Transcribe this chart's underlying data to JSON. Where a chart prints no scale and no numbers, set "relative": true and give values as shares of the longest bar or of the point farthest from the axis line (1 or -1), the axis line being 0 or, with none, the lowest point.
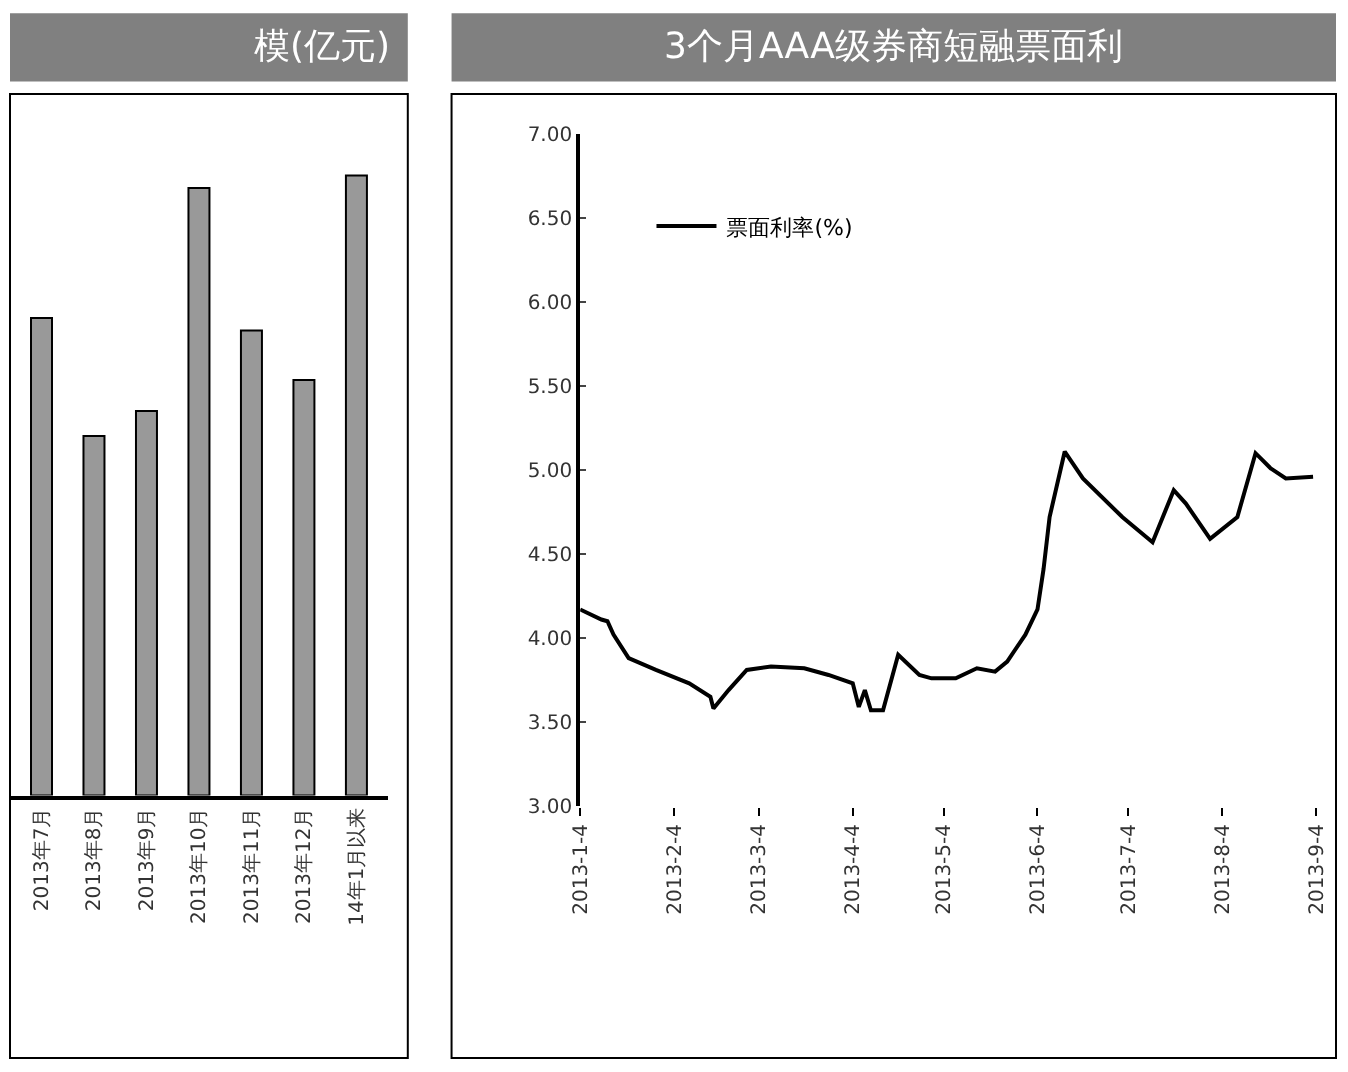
{
  "chart_data": [
    {
      "type": "bar",
      "title": "模(亿元)",
      "relative": true,
      "color": "#999999",
      "categories": [
        "2013年7月",
        "2013年8月",
        "2013年9月",
        "2013年10月",
        "2013年11月",
        "2013年12月",
        "14年1月以来"
      ],
      "values": [
        0.77,
        0.58,
        0.62,
        0.98,
        0.75,
        0.67,
        1.0
      ]
    },
    {
      "type": "line",
      "title": "3个月AAA级券商短融票面利",
      "legend": "top left",
      "marker": "none",
      "line_style": "solid",
      "x": [
        "2013-01-04",
        "2013-01-11",
        "2013-01-13",
        "2013-01-15",
        "2013-01-20",
        "2013-01-29",
        "2013-02-09",
        "2013-02-16",
        "2013-02-17",
        "2013-02-22",
        "2013-02-28",
        "2013-03-08",
        "2013-03-19",
        "2013-03-27",
        "2013-04-04",
        "2013-04-06",
        "2013-04-08",
        "2013-04-10",
        "2013-04-14",
        "2013-04-19",
        "2013-04-26",
        "2013-04-30",
        "2013-05-08",
        "2013-05-15",
        "2013-05-21",
        "2013-05-25",
        "2013-05-31",
        "2013-06-04",
        "2013-06-06",
        "2013-06-08",
        "2013-06-13",
        "2013-06-19",
        "2013-07-02",
        "2013-07-12",
        "2013-07-19",
        "2013-07-23",
        "2013-07-31",
        "2013-08-09",
        "2013-08-15",
        "2013-08-20",
        "2013-08-25",
        "2013-09-03"
      ],
      "series": [
        {
          "name": "票面利率(%)",
          "color": "#000000",
          "values": [
            4.17,
            4.11,
            4.1,
            4.02,
            3.88,
            3.81,
            3.73,
            3.65,
            3.58,
            3.69,
            3.81,
            3.83,
            3.82,
            3.78,
            3.73,
            3.59,
            3.69,
            3.57,
            3.57,
            3.9,
            3.78,
            3.76,
            3.76,
            3.82,
            3.8,
            3.86,
            4.02,
            4.17,
            4.41,
            4.72,
            5.11,
            4.95,
            4.72,
            4.57,
            4.88,
            4.8,
            4.59,
            4.72,
            5.1,
            5.01,
            4.95,
            4.96
          ]
        }
      ],
      "xlim": [
        "2013-01-04",
        "2013-09-04"
      ],
      "xticks": [
        {
          "value": "2013-01-04",
          "label": "2013-1-4"
        },
        {
          "value": "2013-02-04",
          "label": "2013-2-4"
        },
        {
          "value": "2013-03-04",
          "label": "2013-3-4"
        },
        {
          "value": "2013-04-04",
          "label": "2013-4-4"
        },
        {
          "value": "2013-05-04",
          "label": "2013-5-4"
        },
        {
          "value": "2013-06-04",
          "label": "2013-6-4"
        },
        {
          "value": "2013-07-04",
          "label": "2013-7-4"
        },
        {
          "value": "2013-08-04",
          "label": "2013-8-4"
        },
        {
          "value": "2013-09-04",
          "label": "2013-9-4"
        }
      ],
      "ylim": [
        3.0,
        7.0
      ],
      "yticks": [
        {
          "value": 3.0,
          "label": "3.00"
        },
        {
          "value": 3.5,
          "label": "3.50"
        },
        {
          "value": 4.0,
          "label": "4.00"
        },
        {
          "value": 4.5,
          "label": "4.50"
        },
        {
          "value": 5.0,
          "label": "5.00"
        },
        {
          "value": 5.5,
          "label": "5.50"
        },
        {
          "value": 6.0,
          "label": "6.00"
        },
        {
          "value": 6.5,
          "label": "6.50"
        },
        {
          "value": 7.0,
          "label": "7.00"
        }
      ]
    }
  ]
}
